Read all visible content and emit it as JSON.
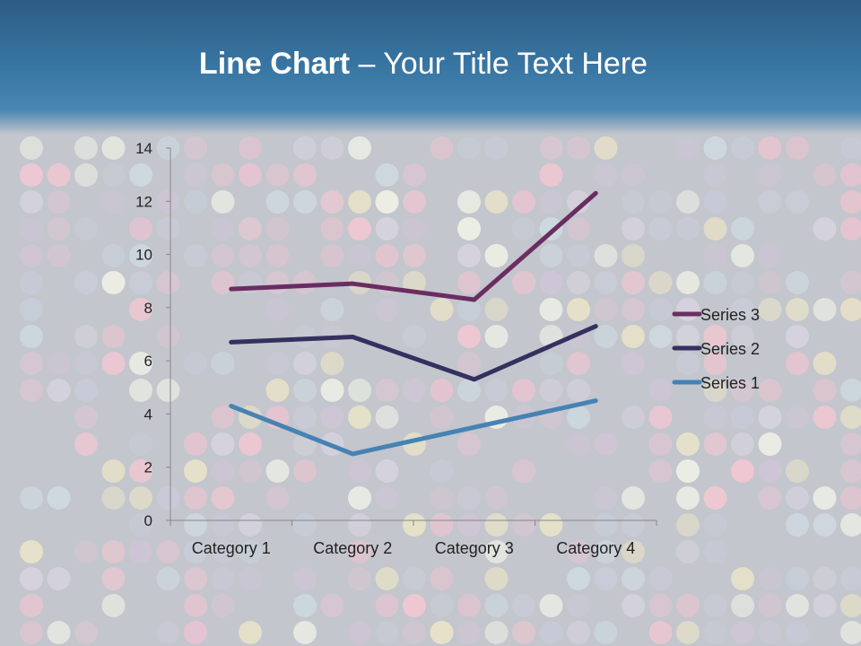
{
  "slide": {
    "title_bold": "Line Chart",
    "title_rest": " – Your Title Text Here",
    "header_color": "#3a78a6",
    "background_color": "#c3c6cc"
  },
  "chart_data": {
    "type": "line",
    "stacked": true,
    "categories": [
      "Category 1",
      "Category 2",
      "Category 3",
      "Category 4"
    ],
    "ylim": [
      0,
      14
    ],
    "yticks": [
      0,
      2,
      4,
      6,
      8,
      10,
      12,
      14
    ],
    "ytick_labels": [
      "0",
      "2",
      "4",
      "6",
      "8",
      "10",
      "12",
      "14"
    ],
    "grid": false,
    "legend_position": "right",
    "series": [
      {
        "name": "Series 1",
        "values": [
          4.3,
          2.5,
          3.5,
          4.5
        ],
        "color": "#4682b4"
      },
      {
        "name": "Series 2",
        "values": [
          6.7,
          6.9,
          5.3,
          7.3
        ],
        "color": "#34305f"
      },
      {
        "name": "Series 3",
        "values": [
          8.7,
          8.9,
          8.3,
          12.3
        ],
        "color": "#6a2d62"
      }
    ]
  }
}
